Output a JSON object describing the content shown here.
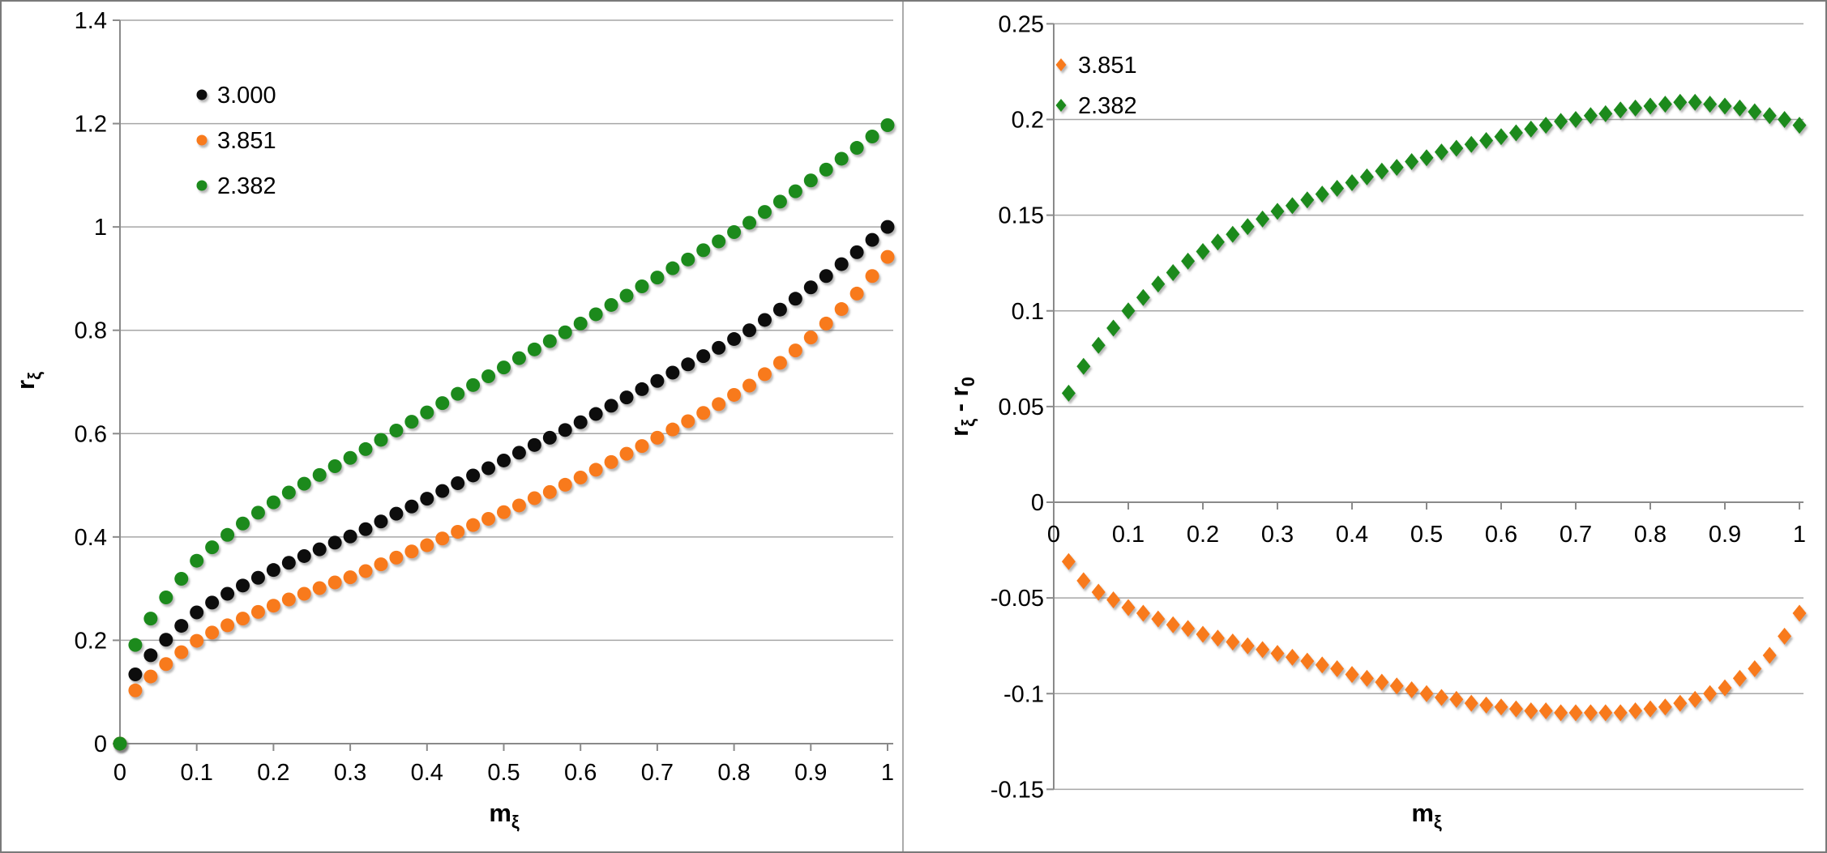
{
  "colors": {
    "series_black": "#0b0b0b",
    "series_orange": "#f87a1c",
    "series_green": "#1b8a1b",
    "gridline": "#a6a6a6",
    "axis": "#8a8a8a",
    "text": "#000000"
  },
  "chart_data": [
    {
      "type": "scatter",
      "marker": "circle",
      "title": "",
      "xlabel": {
        "base": "m",
        "sub": "ξ"
      },
      "ylabel": {
        "base": "r",
        "sub": "ξ"
      },
      "xlim": [
        0,
        1
      ],
      "ylim": [
        0,
        1.4
      ],
      "grid": "horizontal",
      "legend_position": "upper-left",
      "x_ticks": [
        "0",
        "0.1",
        "0.2",
        "0.3",
        "0.4",
        "0.5",
        "0.6",
        "0.7",
        "0.8",
        "0.9",
        "1"
      ],
      "y_ticks": [
        "0",
        "0.2",
        "0.4",
        "0.6",
        "0.8",
        "1",
        "1.2",
        "1.4"
      ],
      "include_origin_point": true,
      "x": [
        0.02,
        0.04,
        0.06,
        0.08,
        0.1,
        0.12,
        0.14,
        0.16,
        0.18,
        0.2,
        0.22,
        0.24,
        0.26,
        0.28,
        0.3,
        0.32,
        0.34,
        0.36,
        0.38,
        0.4,
        0.42,
        0.44,
        0.46,
        0.48,
        0.5,
        0.52,
        0.54,
        0.56,
        0.58,
        0.6,
        0.62,
        0.64,
        0.66,
        0.68,
        0.7,
        0.72,
        0.74,
        0.76,
        0.78,
        0.8,
        0.82,
        0.84,
        0.86,
        0.88,
        0.9,
        0.92,
        0.94,
        0.96,
        0.98,
        1
      ],
      "series": [
        {
          "name": "3.000",
          "color": "#0b0b0b",
          "values": [
            0.134,
            0.171,
            0.201,
            0.228,
            0.254,
            0.273,
            0.29,
            0.306,
            0.321,
            0.336,
            0.35,
            0.363,
            0.376,
            0.389,
            0.401,
            0.415,
            0.43,
            0.445,
            0.459,
            0.474,
            0.489,
            0.504,
            0.519,
            0.533,
            0.548,
            0.563,
            0.578,
            0.592,
            0.607,
            0.622,
            0.638,
            0.654,
            0.67,
            0.686,
            0.702,
            0.718,
            0.734,
            0.75,
            0.766,
            0.783,
            0.8,
            0.82,
            0.84,
            0.861,
            0.883,
            0.905,
            0.928,
            0.951,
            0.975,
            1.0
          ]
        },
        {
          "name": "3.851",
          "color": "#f87a1c",
          "values": [
            0.103,
            0.13,
            0.154,
            0.177,
            0.199,
            0.215,
            0.229,
            0.242,
            0.255,
            0.267,
            0.279,
            0.29,
            0.301,
            0.312,
            0.322,
            0.334,
            0.347,
            0.36,
            0.372,
            0.384,
            0.397,
            0.41,
            0.423,
            0.435,
            0.448,
            0.461,
            0.475,
            0.487,
            0.501,
            0.515,
            0.53,
            0.545,
            0.561,
            0.576,
            0.592,
            0.608,
            0.624,
            0.64,
            0.657,
            0.675,
            0.693,
            0.715,
            0.737,
            0.761,
            0.786,
            0.813,
            0.841,
            0.871,
            0.905,
            0.942
          ]
        },
        {
          "name": "2.382",
          "color": "#1b8a1b",
          "values": [
            0.191,
            0.242,
            0.283,
            0.319,
            0.354,
            0.38,
            0.404,
            0.426,
            0.447,
            0.467,
            0.486,
            0.503,
            0.52,
            0.537,
            0.553,
            0.57,
            0.588,
            0.606,
            0.623,
            0.641,
            0.659,
            0.677,
            0.694,
            0.711,
            0.728,
            0.746,
            0.763,
            0.779,
            0.796,
            0.813,
            0.831,
            0.849,
            0.867,
            0.885,
            0.902,
            0.92,
            0.937,
            0.955,
            0.972,
            0.99,
            1.008,
            1.029,
            1.049,
            1.069,
            1.09,
            1.111,
            1.132,
            1.153,
            1.175,
            1.197
          ]
        }
      ]
    },
    {
      "type": "scatter",
      "marker": "diamond",
      "title": "",
      "xlabel": {
        "base": "m",
        "sub": "ξ"
      },
      "ylabel": {
        "base": "r",
        "sub": "ξ",
        "mid": " - r",
        "sub2": "0"
      },
      "xlim": [
        0,
        1
      ],
      "ylim": [
        -0.15,
        0.25
      ],
      "grid": "horizontal",
      "legend_position": "upper-left",
      "x_ticks": [
        "0",
        "0.1",
        "0.2",
        "0.3",
        "0.4",
        "0.5",
        "0.6",
        "0.7",
        "0.8",
        "0.9",
        "1"
      ],
      "y_ticks": [
        "-0.15",
        "-0.1",
        "-0.05",
        "0",
        "0.05",
        "0.1",
        "0.15",
        "0.2",
        "0.25"
      ],
      "include_origin_point": false,
      "x": [
        0.02,
        0.04,
        0.06,
        0.08,
        0.1,
        0.12,
        0.14,
        0.16,
        0.18,
        0.2,
        0.22,
        0.24,
        0.26,
        0.28,
        0.3,
        0.32,
        0.34,
        0.36,
        0.38,
        0.4,
        0.42,
        0.44,
        0.46,
        0.48,
        0.5,
        0.52,
        0.54,
        0.56,
        0.58,
        0.6,
        0.62,
        0.64,
        0.66,
        0.68,
        0.7,
        0.72,
        0.74,
        0.76,
        0.78,
        0.8,
        0.82,
        0.84,
        0.86,
        0.88,
        0.9,
        0.92,
        0.94,
        0.96,
        0.98,
        1
      ],
      "series": [
        {
          "name": "3.851",
          "color": "#f87a1c",
          "values": [
            -0.031,
            -0.041,
            -0.047,
            -0.051,
            -0.055,
            -0.058,
            -0.061,
            -0.064,
            -0.066,
            -0.069,
            -0.071,
            -0.073,
            -0.075,
            -0.077,
            -0.079,
            -0.081,
            -0.083,
            -0.085,
            -0.087,
            -0.09,
            -0.092,
            -0.094,
            -0.096,
            -0.098,
            -0.1,
            -0.102,
            -0.103,
            -0.105,
            -0.106,
            -0.107,
            -0.108,
            -0.109,
            -0.109,
            -0.11,
            -0.11,
            -0.11,
            -0.11,
            -0.11,
            -0.109,
            -0.108,
            -0.107,
            -0.105,
            -0.103,
            -0.1,
            -0.097,
            -0.092,
            -0.087,
            -0.08,
            -0.07,
            -0.058
          ]
        },
        {
          "name": "2.382",
          "color": "#1b8a1b",
          "values": [
            0.057,
            0.071,
            0.082,
            0.091,
            0.1,
            0.107,
            0.114,
            0.12,
            0.126,
            0.131,
            0.136,
            0.14,
            0.144,
            0.148,
            0.152,
            0.155,
            0.158,
            0.161,
            0.164,
            0.167,
            0.17,
            0.173,
            0.175,
            0.178,
            0.18,
            0.183,
            0.185,
            0.187,
            0.189,
            0.191,
            0.193,
            0.195,
            0.197,
            0.199,
            0.2,
            0.202,
            0.203,
            0.205,
            0.206,
            0.207,
            0.208,
            0.209,
            0.209,
            0.208,
            0.207,
            0.206,
            0.204,
            0.202,
            0.2,
            0.197
          ]
        }
      ]
    }
  ]
}
